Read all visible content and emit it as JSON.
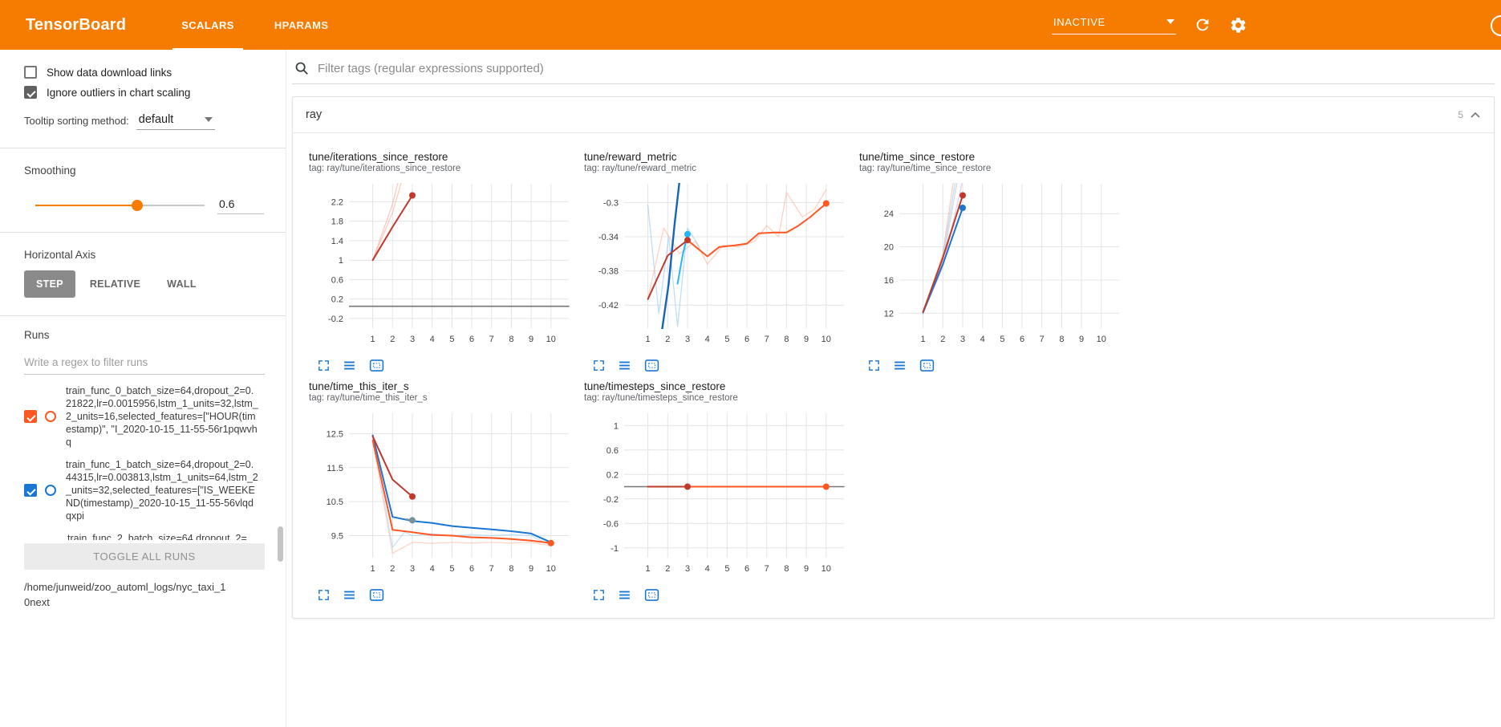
{
  "header": {
    "title": "TensorBoard",
    "tabs": [
      {
        "label": "SCALARS"
      },
      {
        "label": "HPARAMS"
      }
    ],
    "active_tab": "SCALARS",
    "status": "INACTIVE"
  },
  "colors": {
    "header_bg": "#f57c00",
    "run_orange": "#ff5722",
    "run_blue": "#1976d2",
    "run_dark_red": "#c0392b",
    "chart_icon_blue": "#1976d2"
  },
  "sidebar": {
    "show_download": {
      "label": "Show data download links",
      "checked": false
    },
    "ignore_outliers": {
      "label": "Ignore outliers in chart scaling",
      "checked": true
    },
    "tooltip_sorting": {
      "label": "Tooltip sorting method:",
      "value": "default"
    },
    "smoothing": {
      "label": "Smoothing",
      "value": "0.6"
    },
    "horizontal_axis": {
      "label": "Horizontal Axis",
      "options": [
        "STEP",
        "RELATIVE",
        "WALL"
      ],
      "selected": "STEP"
    },
    "runs": {
      "label": "Runs",
      "filter_placeholder": "Write a regex to filter runs",
      "toggle_all": "TOGGLE ALL RUNS",
      "log_dir": "/home/junweid/zoo_automl_logs/nyc_taxi_10next",
      "items": [
        {
          "label": "train_func_0_batch_size=64,dropout_2=0.21822,lr=0.0015956,lstm_1_units=32,lstm_2_units=16,selected_features=[\"HOUR(timestamp)\", \"I_2020-10-15_11-55-56r1pqwvhq",
          "checked": true,
          "color": "#ff5722",
          "show_controls": true
        },
        {
          "label": "train_func_1_batch_size=64,dropout_2=0.44315,lr=0.003813,lstm_1_units=64,lstm_2_units=32,selected_features=[\"IS_WEEKEND(timestamp)_2020-10-15_11-55-56vlqdqxpi",
          "checked": true,
          "color": "#1976d2",
          "show_controls": true
        },
        {
          "label": "train_func_2_batch_size=64,dropout_2=",
          "checked": false,
          "color": "",
          "show_controls": false
        }
      ]
    }
  },
  "main": {
    "filter_placeholder": "Filter tags (regular expressions supported)",
    "group": {
      "title": "ray",
      "count": "5"
    }
  },
  "chart_data": [
    {
      "type": "line",
      "title": "tune/iterations_since_restore",
      "tag": "tag: ray/tune/iterations_since_restore",
      "x_ticks": [
        1,
        2,
        3,
        4,
        5,
        6,
        7,
        8,
        9,
        10
      ],
      "y_ticks": [
        -0.2,
        0.2,
        0.6,
        1,
        1.4,
        1.8,
        2.2
      ],
      "y_min": -0.4,
      "y_max": 2.57,
      "series": [
        {
          "color": "#ef9a9a",
          "width": 1.3,
          "opacity": 0.5,
          "points": [
            [
              1,
              1
            ],
            [
              2,
              2.15
            ],
            [
              2.7,
              3.3
            ]
          ]
        },
        {
          "color": "#ffab91",
          "width": 1.3,
          "opacity": 0.6,
          "points": [
            [
              1,
              1
            ],
            [
              2,
              1.98
            ],
            [
              2.95,
              3.3
            ]
          ]
        },
        {
          "color": "#757575",
          "width": 1.6,
          "opacity": 1,
          "points": [
            [
              -0.2,
              0.05
            ],
            [
              10.9,
              0.05
            ]
          ]
        },
        {
          "color": "#c0392b",
          "width": 2,
          "opacity": 1,
          "points": [
            [
              1,
              1
            ],
            [
              2,
              1.68
            ],
            [
              3,
              2.33
            ]
          ],
          "end_dot": true
        }
      ]
    },
    {
      "type": "line",
      "title": "tune/reward_metric",
      "tag": "tag: ray/tune/reward_metric",
      "x_ticks": [
        1,
        2,
        3,
        4,
        5,
        6,
        7,
        8,
        9,
        10
      ],
      "y_ticks": [
        -0.42,
        -0.38,
        -0.34,
        -0.3
      ],
      "y_min": -0.447,
      "y_max": -0.278,
      "series": [
        {
          "color": "#90caf9",
          "width": 1.3,
          "opacity": 0.6,
          "points": [
            [
              1,
              -0.303
            ],
            [
              1.55,
              -0.43
            ],
            [
              2.05,
              -0.34
            ],
            [
              2.5,
              -0.445
            ],
            [
              3,
              -0.33
            ],
            [
              3.6,
              -0.352
            ]
          ]
        },
        {
          "color": "#ffab91",
          "width": 1.3,
          "opacity": 0.55,
          "points": [
            [
              1,
              -0.412
            ],
            [
              1.8,
              -0.33
            ],
            [
              2.6,
              -0.36
            ],
            [
              3.4,
              -0.345
            ],
            [
              4,
              -0.372
            ],
            [
              4.8,
              -0.35
            ],
            [
              5.6,
              -0.352
            ],
            [
              6.4,
              -0.345
            ],
            [
              7,
              -0.327
            ],
            [
              7.6,
              -0.34
            ],
            [
              8,
              -0.288
            ],
            [
              8.8,
              -0.317
            ],
            [
              9.4,
              -0.308
            ],
            [
              10,
              -0.285
            ]
          ]
        },
        {
          "color": "#1565c0",
          "width": 2.4,
          "opacity": 1,
          "points": [
            [
              1.72,
              -0.448
            ],
            [
              2.05,
              -0.395
            ],
            [
              2.35,
              -0.325
            ],
            [
              2.62,
              -0.27
            ]
          ]
        },
        {
          "color": "#29b6f6",
          "width": 2,
          "opacity": 1,
          "points": [
            [
              2.5,
              -0.395
            ],
            [
              2.75,
              -0.362
            ],
            [
              3,
              -0.337
            ]
          ],
          "end_dot": true
        },
        {
          "color": "#c0392b",
          "width": 2,
          "opacity": 1,
          "points": [
            [
              1,
              -0.413
            ],
            [
              2,
              -0.362
            ],
            [
              3,
              -0.344
            ]
          ],
          "end_dot": true
        },
        {
          "color": "#ff5722",
          "width": 2,
          "opacity": 1,
          "points": [
            [
              3,
              -0.344
            ],
            [
              4,
              -0.363
            ],
            [
              4.6,
              -0.352
            ],
            [
              5.4,
              -0.35
            ],
            [
              6,
              -0.348
            ],
            [
              6.6,
              -0.336
            ],
            [
              7.4,
              -0.335
            ],
            [
              8,
              -0.335
            ],
            [
              8.6,
              -0.327
            ],
            [
              9.2,
              -0.317
            ],
            [
              10,
              -0.301
            ]
          ],
          "end_dot": true
        }
      ]
    },
    {
      "type": "line",
      "title": "tune/time_since_restore",
      "tag": "tag: ray/tune/time_since_restore",
      "x_ticks": [
        1,
        2,
        3,
        4,
        5,
        6,
        7,
        8,
        9,
        10
      ],
      "y_ticks": [
        12,
        16,
        20,
        24
      ],
      "y_min": 10.2,
      "y_max": 27.6,
      "series": [
        {
          "color": "#cfd8dc",
          "width": 1.4,
          "opacity": 0.9,
          "points": [
            [
              1,
              12
            ],
            [
              2,
              18.3
            ],
            [
              2.75,
              28.2
            ]
          ]
        },
        {
          "color": "#e1bee7",
          "width": 1.4,
          "opacity": 0.7,
          "points": [
            [
              1,
              12
            ],
            [
              2,
              17.6
            ],
            [
              3,
              28
            ]
          ]
        },
        {
          "color": "#ffab91",
          "width": 1.3,
          "opacity": 0.6,
          "points": [
            [
              1,
              12
            ],
            [
              2,
              19.2
            ],
            [
              2.55,
              28.2
            ]
          ]
        },
        {
          "color": "#90caf9",
          "width": 1.3,
          "opacity": 0.6,
          "points": [
            [
              1,
              11.9
            ],
            [
              2,
              18.8
            ],
            [
              2.65,
              28.2
            ]
          ]
        },
        {
          "color": "#1976d2",
          "width": 2,
          "opacity": 1,
          "points": [
            [
              1,
              12.1
            ],
            [
              2,
              17.9
            ],
            [
              3,
              24.7
            ]
          ],
          "end_dot": true
        },
        {
          "color": "#c0392b",
          "width": 2,
          "opacity": 1,
          "points": [
            [
              1,
              12.15
            ],
            [
              2,
              18.7
            ],
            [
              3,
              26.2
            ]
          ],
          "end_dot": true
        }
      ]
    },
    {
      "type": "line",
      "title": "tune/time_this_iter_s",
      "tag": "tag: ray/tune/time_this_iter_s",
      "x_ticks": [
        1,
        2,
        3,
        4,
        5,
        6,
        7,
        8,
        9,
        10
      ],
      "y_ticks": [
        9.5,
        10.5,
        11.5,
        12.5
      ],
      "y_min": 8.85,
      "y_max": 13.1,
      "series": [
        {
          "color": "#90caf9",
          "width": 1.3,
          "opacity": 0.5,
          "points": [
            [
              1,
              12.45
            ],
            [
              2,
              9.15
            ],
            [
              2.6,
              9.6
            ],
            [
              3,
              9.5
            ],
            [
              4,
              9.55
            ],
            [
              5,
              9.5
            ],
            [
              6,
              9.53
            ],
            [
              7,
              9.5
            ],
            [
              8,
              9.53
            ],
            [
              9,
              9.5
            ],
            [
              10,
              9.2
            ]
          ]
        },
        {
          "color": "#ffab91",
          "width": 1.3,
          "opacity": 0.5,
          "points": [
            [
              1,
              12.3
            ],
            [
              2,
              8.98
            ],
            [
              3,
              9.3
            ],
            [
              4,
              9.27
            ],
            [
              5,
              9.3
            ],
            [
              6,
              9.28
            ],
            [
              7,
              9.3
            ],
            [
              8,
              9.28
            ],
            [
              9,
              9.3
            ],
            [
              10,
              9.2
            ]
          ]
        },
        {
          "color": "#1976d2",
          "width": 2,
          "opacity": 1,
          "points": [
            [
              1,
              12.45
            ],
            [
              2,
              10.05
            ],
            [
              3,
              9.93
            ],
            [
              4,
              9.87
            ],
            [
              5,
              9.78
            ],
            [
              6,
              9.73
            ],
            [
              7,
              9.68
            ],
            [
              8,
              9.63
            ],
            [
              9,
              9.56
            ],
            [
              10,
              9.3
            ]
          ]
        },
        {
          "color": "#78909c",
          "width": 2,
          "opacity": 1,
          "points": [
            [
              2.7,
              9.98
            ],
            [
              3,
              9.95
            ]
          ],
          "end_dot": true
        },
        {
          "color": "#ff5722",
          "width": 2,
          "opacity": 1,
          "points": [
            [
              1,
              12.3
            ],
            [
              2,
              9.67
            ],
            [
              3,
              9.6
            ],
            [
              4,
              9.52
            ],
            [
              5,
              9.5
            ],
            [
              6,
              9.45
            ],
            [
              7,
              9.43
            ],
            [
              8,
              9.4
            ],
            [
              9,
              9.35
            ],
            [
              10,
              9.28
            ]
          ],
          "end_dot": true
        },
        {
          "color": "#c0392b",
          "width": 2,
          "opacity": 1,
          "points": [
            [
              1,
              12.42
            ],
            [
              2,
              11.15
            ],
            [
              3,
              10.65
            ]
          ],
          "end_dot": true
        }
      ]
    },
    {
      "type": "line",
      "title": "tune/timesteps_since_restore",
      "tag": "tag: ray/tune/timesteps_since_restore",
      "x_ticks": [
        1,
        2,
        3,
        4,
        5,
        6,
        7,
        8,
        9,
        10
      ],
      "y_ticks": [
        -1,
        -0.6,
        -0.2,
        0.2,
        0.6,
        1
      ],
      "y_min": -1.16,
      "y_max": 1.2,
      "series": [
        {
          "color": "#757575",
          "width": 1.6,
          "opacity": 1,
          "points": [
            [
              -0.2,
              0
            ],
            [
              10.9,
              0
            ]
          ]
        },
        {
          "color": "#ff5722",
          "width": 2,
          "opacity": 1,
          "points": [
            [
              1,
              0
            ],
            [
              10,
              0
            ]
          ],
          "end_dot": true
        },
        {
          "color": "#c0392b",
          "width": 2,
          "opacity": 1,
          "points": [
            [
              1,
              0
            ],
            [
              3,
              0
            ]
          ],
          "end_dot": true
        }
      ]
    }
  ]
}
